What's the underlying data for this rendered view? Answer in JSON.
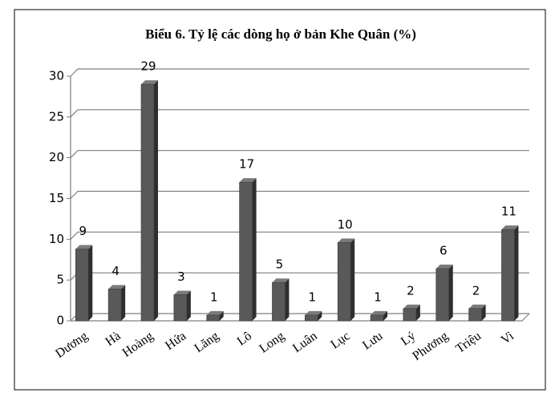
{
  "chart_data": {
    "type": "bar3d",
    "title": "Biểu 6. Tỷ lệ các dòng họ ở bản Khe Quân (%)",
    "categories": [
      "Dương",
      "Hà",
      "Hoàng",
      "Hứa",
      "Lăng",
      "Lô",
      "Long",
      "Luân",
      "Lục",
      "Lưu",
      "Lý",
      "Phương",
      "Triệu",
      "Vi"
    ],
    "values": [
      8.8,
      3.9,
      29,
      3.2,
      0.7,
      17,
      4.7,
      0.7,
      9.6,
      0.7,
      1.5,
      6.4,
      1.5,
      11.2
    ],
    "value_labels": [
      "9",
      "4",
      "29",
      "3",
      "1",
      "17",
      "5",
      "1",
      "10",
      "1",
      "2",
      "6",
      "2",
      "11"
    ],
    "color": "#595959",
    "ylim": [
      0,
      30
    ],
    "yticks": [
      0,
      5,
      10,
      15,
      20,
      25,
      30
    ],
    "grid": true
  }
}
